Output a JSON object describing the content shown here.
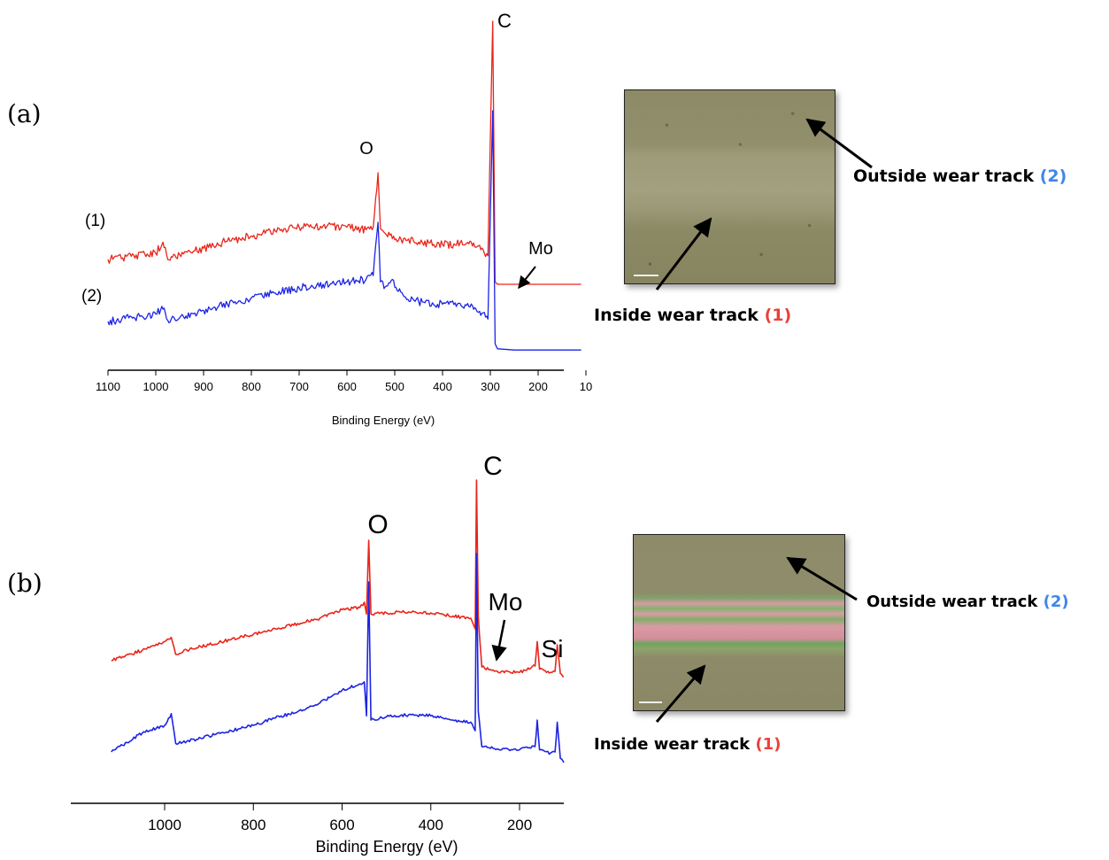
{
  "colors": {
    "series_1": "#e8261b",
    "series_2": "#1d24e3",
    "label_1": "#e8413a",
    "label_2": "#3f87e8"
  },
  "panels": [
    {
      "label": "(a)",
      "image_callouts": [
        {
          "text": "Outside wear track",
          "num": "(2)"
        },
        {
          "text": "Inside wear track",
          "num": "(1)"
        }
      ]
    },
    {
      "label": "(b)",
      "image_callouts": [
        {
          "text": "Outside wear track",
          "num": "(2)"
        },
        {
          "text": "Inside wear track",
          "num": "(1)"
        }
      ]
    }
  ],
  "chart_data": [
    {
      "type": "line",
      "xlabel": "Binding Energy (eV)",
      "xlim": [
        1100,
        100
      ],
      "x_reversed": true,
      "tick_labels": [
        "1100",
        "1000",
        "900",
        "800",
        "700",
        "600",
        "500",
        "400",
        "300",
        "200",
        "10"
      ],
      "curve_labels": [
        "(1)",
        "(2)"
      ],
      "peak_labels": [
        "O",
        "C",
        "Mo"
      ],
      "series": [
        {
          "name": "(1)",
          "x": [
            1100,
            1000,
            985,
            975,
            950,
            900,
            850,
            800,
            750,
            700,
            650,
            600,
            560,
            545,
            535,
            530,
            520,
            500,
            450,
            400,
            350,
            315,
            305,
            295,
            290,
            285,
            250,
            200,
            150,
            110
          ],
          "y": [
            0.3,
            0.35,
            0.44,
            0.3,
            0.34,
            0.39,
            0.45,
            0.49,
            0.53,
            0.56,
            0.57,
            0.56,
            0.54,
            0.56,
            1.0,
            0.55,
            0.51,
            0.46,
            0.44,
            0.42,
            0.43,
            0.38,
            0.33,
            5.0,
            0.12,
            0.1,
            0.1,
            0.1,
            0.1,
            0.1
          ]
        },
        {
          "name": "(2)",
          "x": [
            1100,
            1000,
            985,
            975,
            950,
            900,
            850,
            800,
            750,
            700,
            650,
            600,
            560,
            545,
            535,
            530,
            520,
            505,
            495,
            480,
            450,
            400,
            350,
            315,
            305,
            295,
            290,
            285,
            250,
            200,
            150,
            110
          ],
          "y": [
            0.3,
            0.36,
            0.4,
            0.31,
            0.33,
            0.39,
            0.44,
            0.49,
            0.53,
            0.57,
            0.6,
            0.62,
            0.64,
            0.67,
            1.1,
            0.62,
            0.58,
            0.64,
            0.55,
            0.5,
            0.46,
            0.44,
            0.43,
            0.37,
            0.32,
            3.5,
            0.12,
            0.08,
            0.07,
            0.07,
            0.07,
            0.07
          ]
        }
      ]
    },
    {
      "type": "line",
      "xlabel": "Binding Energy (eV)",
      "xlim": [
        1150,
        100
      ],
      "x_reversed": true,
      "tick_labels": [
        "1000",
        "800",
        "600",
        "400",
        "200"
      ],
      "tick_values": [
        1000,
        800,
        600,
        400,
        200
      ],
      "peak_labels": [
        "O",
        "C",
        "Mo",
        "Si"
      ],
      "series": [
        {
          "name": "(1)",
          "x": [
            1120,
            1050,
            1000,
            985,
            975,
            950,
            900,
            850,
            800,
            750,
            700,
            650,
            600,
            560,
            550,
            545,
            540,
            535,
            500,
            450,
            400,
            350,
            310,
            300,
            297,
            293,
            285,
            250,
            200,
            165,
            160,
            155,
            130,
            120,
            115,
            108,
            100
          ],
          "y": [
            0.3,
            0.4,
            0.48,
            0.52,
            0.36,
            0.4,
            0.45,
            0.5,
            0.55,
            0.6,
            0.65,
            0.7,
            0.78,
            0.8,
            0.85,
            0.74,
            3.0,
            0.74,
            0.75,
            0.76,
            0.75,
            0.72,
            0.7,
            0.6,
            4.8,
            0.72,
            0.24,
            0.2,
            0.19,
            0.25,
            0.48,
            0.22,
            0.19,
            0.2,
            0.45,
            0.18,
            0.15
          ]
        },
        {
          "name": "(2)",
          "x": [
            1120,
            1050,
            1000,
            985,
            975,
            950,
            900,
            850,
            800,
            750,
            700,
            650,
            600,
            560,
            550,
            545,
            540,
            535,
            500,
            450,
            400,
            350,
            310,
            300,
            297,
            293,
            285,
            250,
            200,
            165,
            160,
            155,
            130,
            120,
            115,
            108,
            100
          ],
          "y": [
            0.3,
            0.48,
            0.55,
            0.66,
            0.38,
            0.4,
            0.45,
            0.5,
            0.55,
            0.62,
            0.68,
            0.76,
            0.88,
            0.94,
            0.96,
            0.64,
            2.2,
            0.6,
            0.63,
            0.65,
            0.64,
            0.6,
            0.58,
            0.5,
            3.3,
            0.68,
            0.35,
            0.33,
            0.32,
            0.35,
            0.6,
            0.32,
            0.29,
            0.3,
            0.58,
            0.24,
            0.2
          ]
        }
      ]
    }
  ]
}
